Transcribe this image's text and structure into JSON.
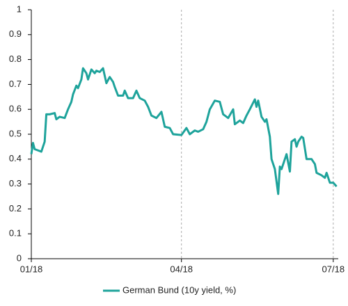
{
  "chart_data": {
    "type": "line",
    "x": [
      0,
      1,
      2,
      4,
      6,
      8,
      9,
      11,
      14,
      15,
      17,
      20,
      22,
      24,
      25,
      27,
      28,
      30,
      31,
      33,
      34,
      36,
      38,
      39,
      41,
      43,
      45,
      47,
      49,
      50,
      52,
      55,
      56,
      58,
      61,
      63,
      65,
      68,
      70,
      72,
      75,
      78,
      80,
      83,
      85,
      90,
      93,
      95,
      98,
      100,
      103,
      105,
      107,
      110,
      113,
      115,
      118,
      121,
      122,
      125,
      127,
      129,
      131,
      134,
      135,
      136,
      138,
      140,
      141,
      143,
      144,
      146,
      148,
      149,
      150,
      152,
      153,
      155,
      156,
      158,
      159,
      160,
      162,
      163,
      165,
      168,
      170,
      171,
      174,
      176,
      177,
      179,
      181,
      183
    ],
    "series": [
      {
        "name": "German Bund (10y yield, %)",
        "color": "#1ea39b",
        "values": [
          0.42,
          0.465,
          0.44,
          0.435,
          0.43,
          0.47,
          0.58,
          0.58,
          0.585,
          0.56,
          0.57,
          0.565,
          0.6,
          0.63,
          0.66,
          0.695,
          0.685,
          0.72,
          0.765,
          0.745,
          0.72,
          0.76,
          0.745,
          0.755,
          0.75,
          0.765,
          0.705,
          0.73,
          0.71,
          0.69,
          0.655,
          0.655,
          0.675,
          0.645,
          0.645,
          0.675,
          0.645,
          0.635,
          0.61,
          0.575,
          0.565,
          0.59,
          0.53,
          0.525,
          0.5,
          0.497,
          0.525,
          0.5,
          0.515,
          0.51,
          0.52,
          0.55,
          0.6,
          0.635,
          0.63,
          0.58,
          0.565,
          0.6,
          0.54,
          0.555,
          0.545,
          0.575,
          0.6,
          0.64,
          0.61,
          0.635,
          0.57,
          0.55,
          0.56,
          0.49,
          0.4,
          0.36,
          0.26,
          0.37,
          0.36,
          0.4,
          0.42,
          0.35,
          0.47,
          0.48,
          0.45,
          0.47,
          0.49,
          0.485,
          0.4,
          0.4,
          0.38,
          0.345,
          0.335,
          0.325,
          0.345,
          0.305,
          0.305,
          0.29
        ]
      }
    ],
    "xlim": [
      0,
      184
    ],
    "xticks": [
      {
        "value": 0,
        "label": "01/18"
      },
      {
        "value": 90,
        "label": "04/18"
      },
      {
        "value": 181,
        "label": "07/18"
      }
    ],
    "ylim": [
      0,
      1
    ],
    "yticks": [
      0,
      0.1,
      0.2,
      0.3,
      0.4,
      0.5,
      0.6,
      0.7,
      0.8,
      0.9,
      1
    ],
    "xgrid": true,
    "legend": "bottom"
  }
}
